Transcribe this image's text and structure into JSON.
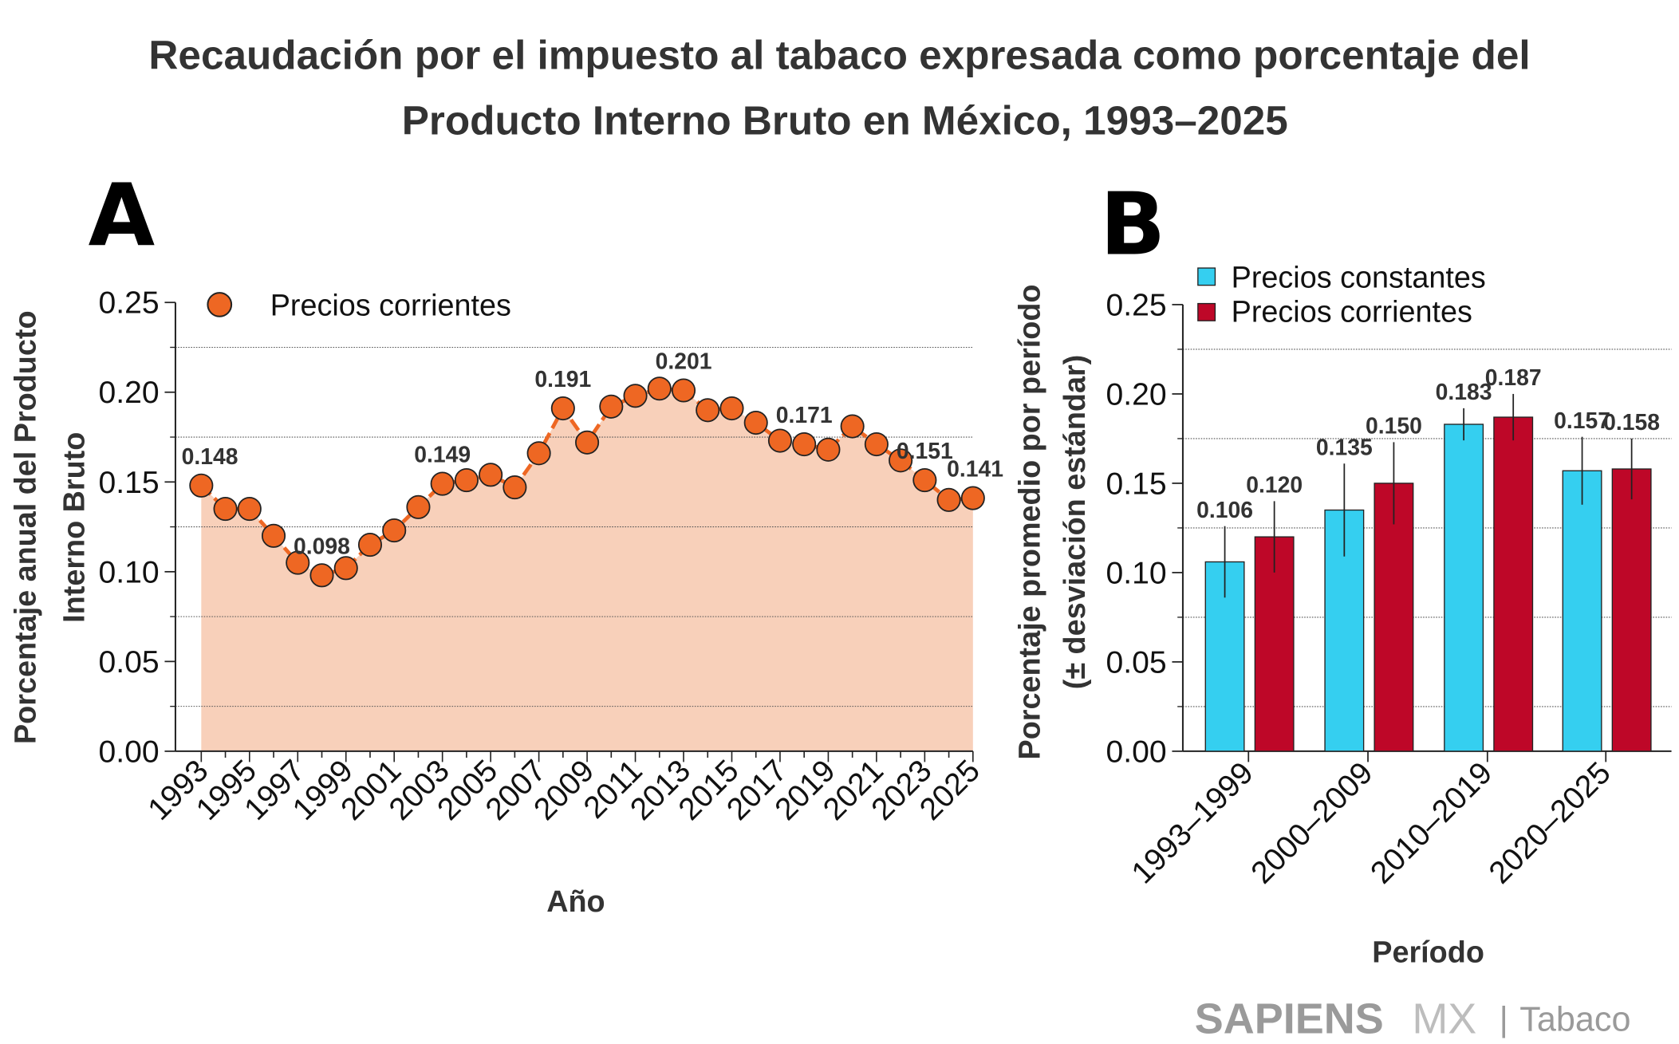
{
  "title": [
    "Recaudación por el impuesto al tabaco expresada como porcentaje del",
    "Producto Interno Bruto en México, 1993–2025"
  ],
  "watermark": {
    "brand": "SAPIENS",
    "brand2": "MX",
    "sep": "|",
    "topic": "Tabaco"
  },
  "chart_data": [
    {
      "panel": "A",
      "type": "line",
      "area_fill": true,
      "xlabel": "Año",
      "ylabel": [
        "Porcentaje anual del Producto",
        "Interno Bruto"
      ],
      "ylim": [
        0,
        0.25
      ],
      "yticks": [
        "0.00",
        "0.05",
        "0.10",
        "0.15",
        "0.20",
        "0.25"
      ],
      "xtick_labels": [
        "1993",
        "1995",
        "1997",
        "1999",
        "2001",
        "2003",
        "2005",
        "2007",
        "2009",
        "2011",
        "2013",
        "2015",
        "2017",
        "2019",
        "2021",
        "2023",
        "2025"
      ],
      "grid": "dotted horizontal at 0.025 intervals between ticks",
      "legend": "top-left",
      "series": [
        {
          "name": "Precios corrientes",
          "color": "#EE6723",
          "fill_color": "#F8D0BA",
          "x": [
            1993,
            1994,
            1995,
            1996,
            1997,
            1998,
            1999,
            2000,
            2001,
            2002,
            2003,
            2004,
            2005,
            2006,
            2007,
            2008,
            2009,
            2010,
            2011,
            2012,
            2013,
            2014,
            2015,
            2016,
            2017,
            2018,
            2019,
            2020,
            2021,
            2022,
            2023,
            2024,
            2025
          ],
          "values": [
            0.148,
            0.135,
            0.135,
            0.12,
            0.105,
            0.098,
            0.102,
            0.115,
            0.123,
            0.136,
            0.149,
            0.151,
            0.154,
            0.147,
            0.166,
            0.191,
            0.172,
            0.192,
            0.198,
            0.202,
            0.201,
            0.19,
            0.191,
            0.183,
            0.173,
            0.171,
            0.168,
            0.181,
            0.171,
            0.162,
            0.151,
            0.14,
            0.141
          ]
        }
      ],
      "data_labels": [
        {
          "x": 1993,
          "text": "0.148"
        },
        {
          "x": 1998,
          "text": "0.098"
        },
        {
          "x": 2003,
          "text": "0.149"
        },
        {
          "x": 2008,
          "text": "0.191"
        },
        {
          "x": 2013,
          "text": "0.201"
        },
        {
          "x": 2018,
          "text": "0.171"
        },
        {
          "x": 2023,
          "text": "0.151"
        },
        {
          "x": 2025,
          "text": "0.141"
        }
      ]
    },
    {
      "panel": "B",
      "type": "bar",
      "xlabel": "Período",
      "ylabel": [
        "Porcentaje promedio por período",
        "(± desviación estándar)"
      ],
      "ylim": [
        0,
        0.25
      ],
      "yticks": [
        "0.00",
        "0.05",
        "0.10",
        "0.15",
        "0.20",
        "0.25"
      ],
      "categories": [
        "1993–1999",
        "2000–2009",
        "2010–2019",
        "2020–2025"
      ],
      "legend": "top-left",
      "series": [
        {
          "name": "Precios constantes",
          "color": "#35CFF0",
          "values": [
            0.106,
            0.135,
            0.183,
            0.157
          ],
          "sd": [
            0.02,
            0.026,
            0.009,
            0.019
          ],
          "labels": [
            "0.106",
            "0.135",
            "0.183",
            "0.157"
          ]
        },
        {
          "name": "Precios corrientes",
          "color": "#BE0728",
          "values": [
            0.12,
            0.15,
            0.187,
            0.158
          ],
          "sd": [
            0.02,
            0.023,
            0.013,
            0.017
          ],
          "labels": [
            "0.120",
            "0.150",
            "0.187",
            "0.158"
          ]
        }
      ]
    }
  ]
}
